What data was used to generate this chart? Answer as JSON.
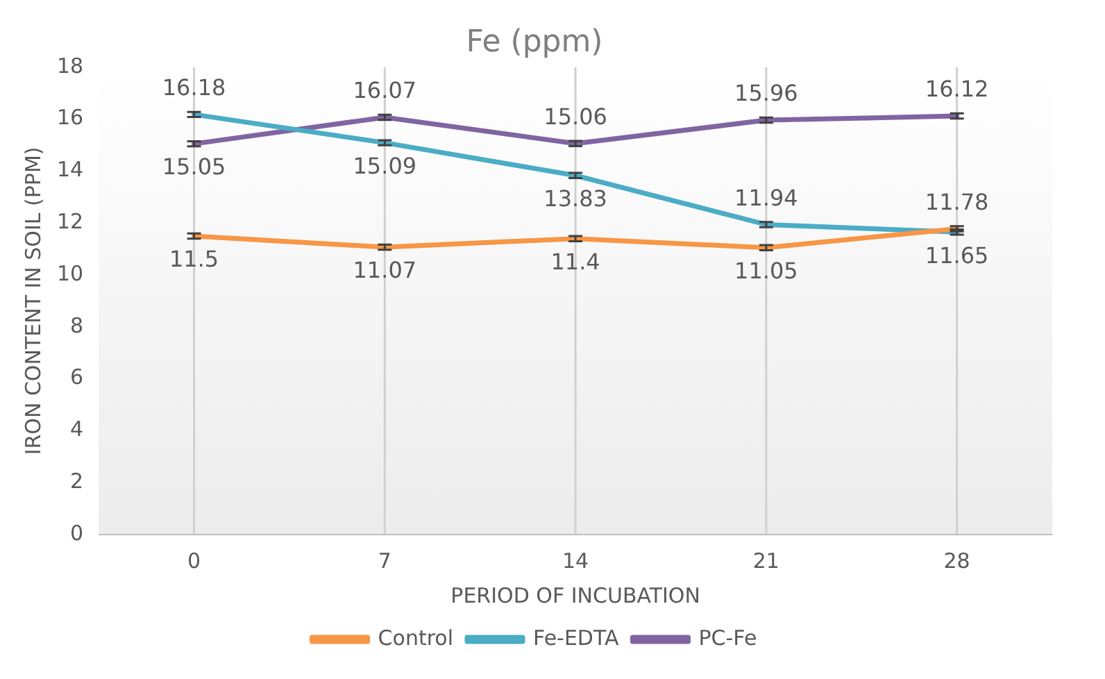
{
  "chart_data": {
    "type": "line",
    "title": "Fe (ppm)",
    "xlabel": "PERIOD OF INCUBATION",
    "ylabel": "IRON CONTENT IN SOIL (PPM)",
    "categories": [
      "0",
      "7",
      "14",
      "21",
      "28"
    ],
    "series": [
      {
        "name": "Control",
        "color": "#f79646",
        "values": [
          11.5,
          11.07,
          11.4,
          11.05,
          11.78
        ],
        "errors": [
          0.1,
          0.1,
          0.1,
          0.1,
          0.1
        ]
      },
      {
        "name": "Fe-EDTA",
        "color": "#4bacc6",
        "values": [
          16.18,
          15.09,
          13.83,
          11.94,
          11.65
        ],
        "errors": [
          0.1,
          0.1,
          0.1,
          0.1,
          0.1
        ]
      },
      {
        "name": "PC-Fe",
        "color": "#8064a2",
        "values": [
          15.05,
          16.07,
          15.06,
          15.96,
          16.12
        ],
        "errors": [
          0.1,
          0.1,
          0.1,
          0.1,
          0.1
        ]
      }
    ],
    "ylim": [
      0,
      18
    ],
    "yticks": [
      0,
      2,
      4,
      6,
      8,
      10,
      12,
      14,
      16,
      18
    ],
    "grid": "x",
    "legend": "bottom",
    "data_labels": true,
    "marker": "none",
    "line_style": "solid"
  }
}
